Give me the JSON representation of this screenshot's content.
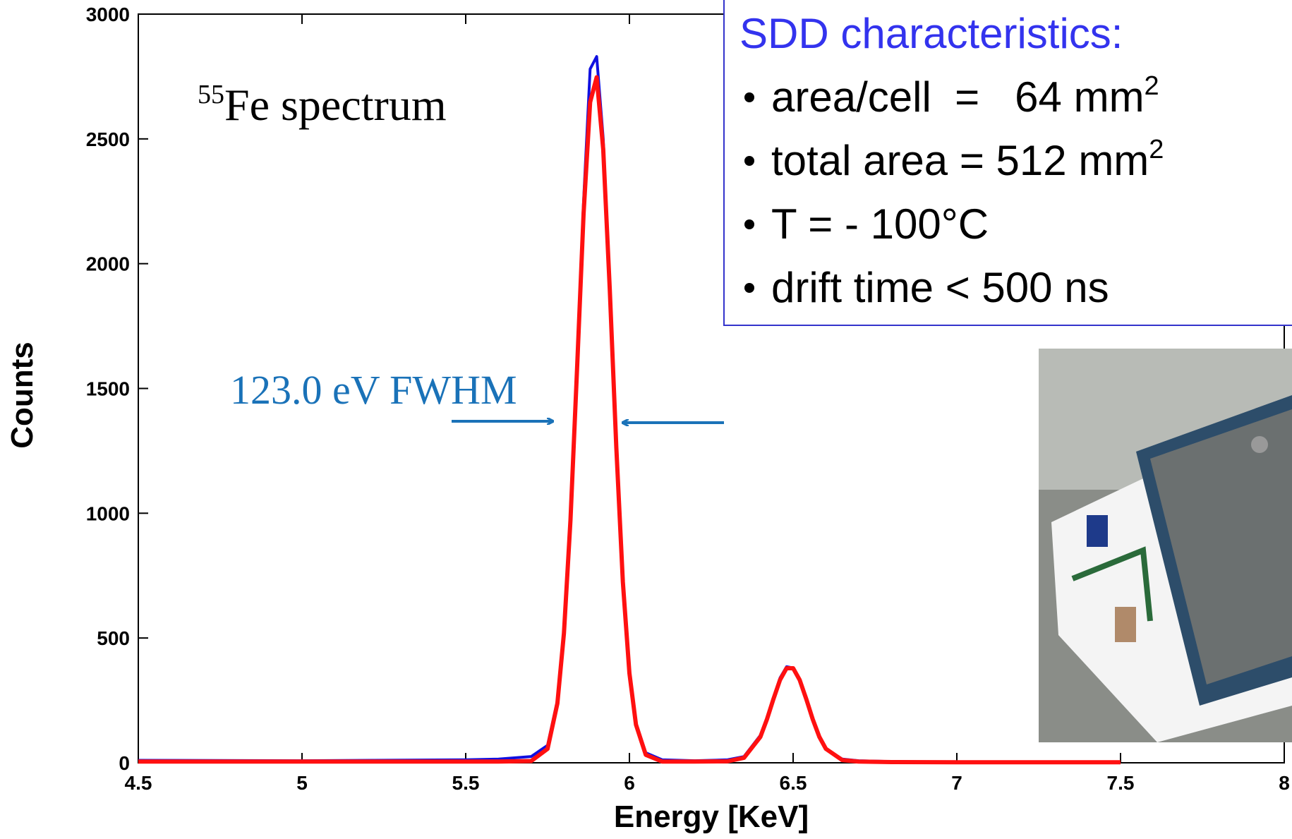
{
  "chart_data": {
    "type": "line",
    "x_label": "Energy [KeV]",
    "y_label": "Counts",
    "title_parts": {
      "sup": "55",
      "text": "Fe spectrum"
    },
    "fwhm_label": "123.0 eV FWHM",
    "x": [
      4.5,
      5.0,
      5.5,
      5.6,
      5.7,
      5.75,
      5.78,
      5.8,
      5.82,
      5.84,
      5.86,
      5.88,
      5.9,
      5.92,
      5.94,
      5.96,
      5.98,
      6.0,
      6.02,
      6.05,
      6.1,
      6.2,
      6.3,
      6.35,
      6.4,
      6.42,
      6.44,
      6.46,
      6.48,
      6.5,
      6.52,
      6.54,
      6.56,
      6.58,
      6.6,
      6.65,
      6.7,
      6.8,
      7.0,
      7.5
    ],
    "series": [
      {
        "color": "#1010e0",
        "width": 4,
        "values": [
          10,
          8,
          12,
          15,
          25,
          70,
          250,
          530,
          990,
          1600,
          2250,
          2780,
          2830,
          2500,
          1900,
          1270,
          730,
          370,
          160,
          40,
          12,
          8,
          12,
          25,
          110,
          180,
          260,
          340,
          385,
          380,
          330,
          250,
          170,
          100,
          55,
          15,
          8,
          5,
          3,
          2
        ]
      },
      {
        "color": "#ff1010",
        "width": 6,
        "values": [
          5,
          5,
          5,
          5,
          7,
          56,
          238,
          519,
          973,
          1576,
          2200,
          2647,
          2747,
          2458,
          1897,
          1263,
          724,
          359,
          153,
          32,
          5,
          5,
          6,
          20,
          104,
          174,
          256,
          332,
          379,
          379,
          332,
          256,
          174,
          104,
          56,
          11,
          5,
          3,
          2,
          2
        ]
      }
    ],
    "xlim": [
      4.5,
      8
    ],
    "xticks": [
      4.5,
      5,
      5.5,
      6,
      6.5,
      7,
      7.5,
      8
    ],
    "ylim": [
      0,
      3000
    ],
    "yticks": [
      0,
      500,
      1000,
      1500,
      2000,
      2500,
      3000
    ],
    "text_box": {
      "title": "SDD characteristics:",
      "items": [
        {
          "text": "area/cell  =   64 mm",
          "sup": "2"
        },
        {
          "text": "total area = 512 mm",
          "sup": "2"
        },
        {
          "text": "T = - 100°C"
        },
        {
          "text": "drift time < 500 ns"
        }
      ]
    }
  }
}
